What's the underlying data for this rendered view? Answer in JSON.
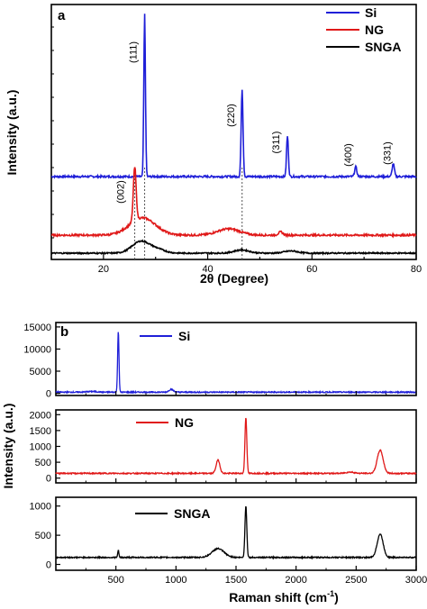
{
  "colors": {
    "si": "#1f1fd8",
    "ng": "#e01818",
    "snga": "#000000",
    "axis": "#000000",
    "guide": "#555555"
  },
  "chart_data": [
    {
      "type": "line",
      "panel_label": "a",
      "xlabel": "2θ (Degree)",
      "ylabel": "Intensity (a.u.)",
      "xlim": [
        10,
        80
      ],
      "x_ticks": [
        20,
        40,
        60,
        80
      ],
      "y_tick_labels": "none",
      "legend": {
        "placement": "top-right",
        "entries": [
          "Si",
          "NG",
          "SNGA"
        ]
      },
      "series": [
        {
          "name": "Si",
          "color_key": "si",
          "offset_level": "top",
          "baseline": 0.06,
          "points": [
            {
              "x": 27.9,
              "y": 1.0,
              "w": 0.22
            },
            {
              "x": 46.6,
              "y": 0.54,
              "w": 0.25
            },
            {
              "x": 55.3,
              "y": 0.25,
              "w": 0.25
            },
            {
              "x": 68.4,
              "y": 0.06,
              "w": 0.3
            },
            {
              "x": 75.6,
              "y": 0.08,
              "w": 0.3
            }
          ]
        },
        {
          "name": "NG",
          "color_key": "ng",
          "offset_level": "middle",
          "baseline": 0.0,
          "points": [
            {
              "x": 26.0,
              "y": 0.34,
              "w": 0.38
            },
            {
              "x": 27.5,
              "y": 0.11,
              "w": 3.5
            },
            {
              "x": 44.0,
              "y": 0.04,
              "w": 3.0
            },
            {
              "x": 54.0,
              "y": 0.02,
              "w": 0.6
            }
          ]
        },
        {
          "name": "SNGA",
          "color_key": "snga",
          "offset_level": "bottom",
          "baseline": 0.0,
          "points": [
            {
              "x": 27.2,
              "y": 0.11,
              "w": 2.4
            },
            {
              "x": 30.5,
              "y": 0.03,
              "w": 2.0
            },
            {
              "x": 46.5,
              "y": 0.03,
              "w": 2.0
            },
            {
              "x": 56.0,
              "y": 0.02,
              "w": 1.8
            }
          ]
        }
      ],
      "peak_labels": [
        {
          "text": "(111)",
          "x": 27.9
        },
        {
          "text": "(220)",
          "x": 46.6
        },
        {
          "text": "(311)",
          "x": 55.3
        },
        {
          "text": "(400)",
          "x": 68.4
        },
        {
          "text": "(331)",
          "x": 75.6
        },
        {
          "text": "(002)",
          "x": 26.0
        }
      ],
      "guide_lines_x": [
        26.0,
        27.9,
        46.6
      ]
    },
    {
      "type": "line",
      "panel_label": "b",
      "xlabel": "Raman shift (cm",
      "xlabel_superscript": "-1",
      "xlabel_suffix": ")",
      "ylabel": "Intensity (a.u.)",
      "xlim": [
        0,
        3000
      ],
      "x_ticks": [
        500,
        1000,
        1500,
        2000,
        2500,
        3000
      ],
      "stacked_panels": [
        {
          "name": "Si",
          "color_key": "si",
          "ylim": [
            -500,
            16000
          ],
          "y_ticks": [
            0,
            5000,
            10000,
            15000
          ],
          "baseline": 250,
          "peaks": [
            {
              "x": 520,
              "y": 13800,
              "w": 8
            },
            {
              "x": 960,
              "y": 650,
              "w": 25
            },
            {
              "x": 300,
              "y": 150,
              "w": 60
            }
          ]
        },
        {
          "name": "NG",
          "color_key": "ng",
          "ylim": [
            -150,
            2150
          ],
          "y_ticks": [
            0,
            500,
            1000,
            1500,
            2000
          ],
          "baseline": 150,
          "peaks": [
            {
              "x": 1350,
              "y": 420,
              "w": 22
            },
            {
              "x": 1582,
              "y": 1770,
              "w": 11
            },
            {
              "x": 2700,
              "y": 730,
              "w": 35
            },
            {
              "x": 2450,
              "y": 40,
              "w": 50
            }
          ]
        },
        {
          "name": "SNGA",
          "color_key": "snga",
          "ylim": [
            -100,
            1150
          ],
          "y_ticks": [
            0,
            500,
            1000
          ],
          "baseline": 120,
          "peaks": [
            {
              "x": 520,
              "y": 120,
              "w": 7
            },
            {
              "x": 1350,
              "y": 150,
              "w": 70
            },
            {
              "x": 1582,
              "y": 880,
              "w": 11
            },
            {
              "x": 2700,
              "y": 400,
              "w": 35
            }
          ]
        }
      ]
    }
  ]
}
